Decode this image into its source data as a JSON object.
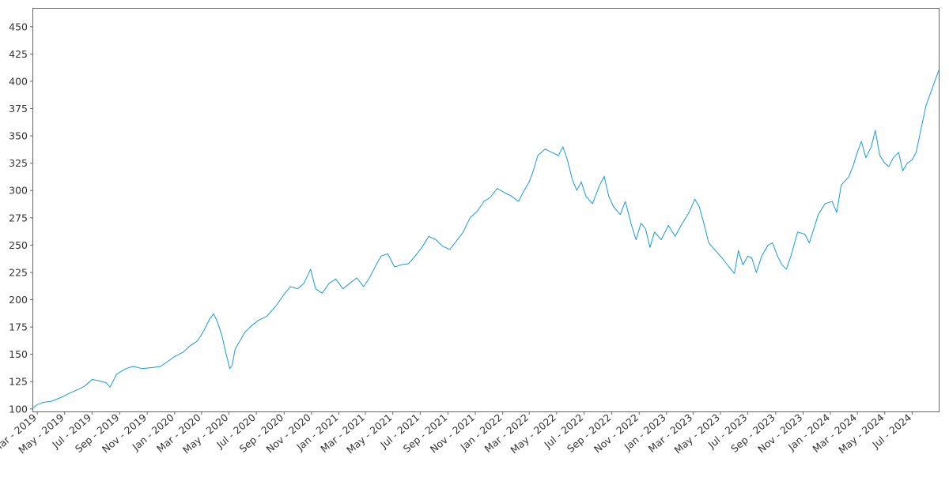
{
  "chart_data": {
    "type": "line",
    "title": "",
    "xlabel": "",
    "ylabel": "",
    "grid": false,
    "legend": "none",
    "line_color": "#1a9ad6",
    "x_start": "2019-02-20",
    "x_end": "2024-08-31",
    "ylim": [
      97.7,
      466.5
    ],
    "y_ticks": [
      100,
      125,
      150,
      175,
      200,
      225,
      250,
      275,
      300,
      325,
      350,
      375,
      400,
      425,
      450
    ],
    "x_ticks": [
      {
        "label": "Mar - 2019",
        "date": "2019-03-01"
      },
      {
        "label": "May - 2019",
        "date": "2019-05-01"
      },
      {
        "label": "Jul - 2019",
        "date": "2019-07-01"
      },
      {
        "label": "Sep - 2019",
        "date": "2019-09-01"
      },
      {
        "label": "Nov - 2019",
        "date": "2019-11-01"
      },
      {
        "label": "Jan - 2020",
        "date": "2020-01-01"
      },
      {
        "label": "Mar - 2020",
        "date": "2020-03-01"
      },
      {
        "label": "May - 2020",
        "date": "2020-05-01"
      },
      {
        "label": "Jul - 2020",
        "date": "2020-07-01"
      },
      {
        "label": "Sep - 2020",
        "date": "2020-09-01"
      },
      {
        "label": "Nov - 2020",
        "date": "2020-11-01"
      },
      {
        "label": "Jan - 2021",
        "date": "2021-01-01"
      },
      {
        "label": "Mar - 2021",
        "date": "2021-03-01"
      },
      {
        "label": "May - 2021",
        "date": "2021-05-01"
      },
      {
        "label": "Jul - 2021",
        "date": "2021-07-01"
      },
      {
        "label": "Sep - 2021",
        "date": "2021-09-01"
      },
      {
        "label": "Nov - 2021",
        "date": "2021-11-01"
      },
      {
        "label": "Jan - 2022",
        "date": "2022-01-01"
      },
      {
        "label": "Mar - 2022",
        "date": "2022-03-01"
      },
      {
        "label": "May - 2022",
        "date": "2022-05-01"
      },
      {
        "label": "Jul - 2022",
        "date": "2022-07-01"
      },
      {
        "label": "Sep - 2022",
        "date": "2022-09-01"
      },
      {
        "label": "Nov - 2022",
        "date": "2022-11-01"
      },
      {
        "label": "Jan - 2023",
        "date": "2023-01-01"
      },
      {
        "label": "Mar - 2023",
        "date": "2023-03-01"
      },
      {
        "label": "May - 2023",
        "date": "2023-05-01"
      },
      {
        "label": "Jul - 2023",
        "date": "2023-07-01"
      },
      {
        "label": "Sep - 2023",
        "date": "2023-09-01"
      },
      {
        "label": "Nov - 2023",
        "date": "2023-11-01"
      },
      {
        "label": "Jan - 2024",
        "date": "2024-01-01"
      },
      {
        "label": "Mar - 2024",
        "date": "2024-03-01"
      },
      {
        "label": "May - 2024",
        "date": "2024-05-01"
      },
      {
        "label": "Jul - 2024",
        "date": "2024-07-01"
      }
    ],
    "series": [
      {
        "points": [
          {
            "x": "2019-02-20",
            "y": 101
          },
          {
            "x": "2019-03-01",
            "y": 104
          },
          {
            "x": "2019-03-15",
            "y": 106
          },
          {
            "x": "2019-04-01",
            "y": 107
          },
          {
            "x": "2019-04-20",
            "y": 110
          },
          {
            "x": "2019-05-15",
            "y": 115
          },
          {
            "x": "2019-06-01",
            "y": 118
          },
          {
            "x": "2019-06-15",
            "y": 121
          },
          {
            "x": "2019-07-01",
            "y": 127
          },
          {
            "x": "2019-07-15",
            "y": 126
          },
          {
            "x": "2019-08-01",
            "y": 124
          },
          {
            "x": "2019-08-10",
            "y": 120
          },
          {
            "x": "2019-08-25",
            "y": 132
          },
          {
            "x": "2019-09-15",
            "y": 137
          },
          {
            "x": "2019-10-01",
            "y": 139
          },
          {
            "x": "2019-10-20",
            "y": 137
          },
          {
            "x": "2019-11-15",
            "y": 138
          },
          {
            "x": "2019-12-01",
            "y": 139
          },
          {
            "x": "2019-12-15",
            "y": 143
          },
          {
            "x": "2020-01-01",
            "y": 148
          },
          {
            "x": "2020-01-20",
            "y": 152
          },
          {
            "x": "2020-02-05",
            "y": 158
          },
          {
            "x": "2020-02-20",
            "y": 162
          },
          {
            "x": "2020-03-01",
            "y": 168
          },
          {
            "x": "2020-03-10",
            "y": 175
          },
          {
            "x": "2020-03-20",
            "y": 183
          },
          {
            "x": "2020-03-28",
            "y": 187
          },
          {
            "x": "2020-04-05",
            "y": 180
          },
          {
            "x": "2020-04-15",
            "y": 168
          },
          {
            "x": "2020-04-22",
            "y": 155
          },
          {
            "x": "2020-04-28",
            "y": 145
          },
          {
            "x": "2020-05-03",
            "y": 137
          },
          {
            "x": "2020-05-08",
            "y": 140
          },
          {
            "x": "2020-05-15",
            "y": 155
          },
          {
            "x": "2020-05-25",
            "y": 162
          },
          {
            "x": "2020-06-05",
            "y": 170
          },
          {
            "x": "2020-06-20",
            "y": 176
          },
          {
            "x": "2020-07-05",
            "y": 181
          },
          {
            "x": "2020-07-25",
            "y": 185
          },
          {
            "x": "2020-08-15",
            "y": 195
          },
          {
            "x": "2020-09-01",
            "y": 205
          },
          {
            "x": "2020-09-15",
            "y": 212
          },
          {
            "x": "2020-10-01",
            "y": 210
          },
          {
            "x": "2020-10-15",
            "y": 215
          },
          {
            "x": "2020-10-30",
            "y": 228
          },
          {
            "x": "2020-11-10",
            "y": 210
          },
          {
            "x": "2020-11-25",
            "y": 206
          },
          {
            "x": "2020-12-10",
            "y": 215
          },
          {
            "x": "2020-12-25",
            "y": 219
          },
          {
            "x": "2021-01-10",
            "y": 210
          },
          {
            "x": "2021-01-25",
            "y": 215
          },
          {
            "x": "2021-02-10",
            "y": 220
          },
          {
            "x": "2021-02-25",
            "y": 212
          },
          {
            "x": "2021-03-10",
            "y": 220
          },
          {
            "x": "2021-03-25",
            "y": 232
          },
          {
            "x": "2021-04-05",
            "y": 240
          },
          {
            "x": "2021-04-20",
            "y": 242
          },
          {
            "x": "2021-05-05",
            "y": 230
          },
          {
            "x": "2021-05-20",
            "y": 232
          },
          {
            "x": "2021-06-05",
            "y": 233
          },
          {
            "x": "2021-06-20",
            "y": 240
          },
          {
            "x": "2021-07-05",
            "y": 248
          },
          {
            "x": "2021-07-20",
            "y": 258
          },
          {
            "x": "2021-08-05",
            "y": 255
          },
          {
            "x": "2021-08-20",
            "y": 249
          },
          {
            "x": "2021-09-05",
            "y": 246
          },
          {
            "x": "2021-09-20",
            "y": 254
          },
          {
            "x": "2021-10-05",
            "y": 262
          },
          {
            "x": "2021-10-20",
            "y": 275
          },
          {
            "x": "2021-11-05",
            "y": 281
          },
          {
            "x": "2021-11-20",
            "y": 290
          },
          {
            "x": "2021-12-05",
            "y": 294
          },
          {
            "x": "2021-12-20",
            "y": 302
          },
          {
            "x": "2022-01-05",
            "y": 298
          },
          {
            "x": "2022-01-20",
            "y": 295
          },
          {
            "x": "2022-02-05",
            "y": 290
          },
          {
            "x": "2022-02-15",
            "y": 298
          },
          {
            "x": "2022-03-01",
            "y": 308
          },
          {
            "x": "2022-03-10",
            "y": 318
          },
          {
            "x": "2022-03-20",
            "y": 332
          },
          {
            "x": "2022-04-05",
            "y": 338
          },
          {
            "x": "2022-04-20",
            "y": 335
          },
          {
            "x": "2022-05-05",
            "y": 332
          },
          {
            "x": "2022-05-15",
            "y": 340
          },
          {
            "x": "2022-05-25",
            "y": 328
          },
          {
            "x": "2022-06-05",
            "y": 310
          },
          {
            "x": "2022-06-15",
            "y": 300
          },
          {
            "x": "2022-06-25",
            "y": 308
          },
          {
            "x": "2022-07-05",
            "y": 295
          },
          {
            "x": "2022-07-20",
            "y": 288
          },
          {
            "x": "2022-08-05",
            "y": 305
          },
          {
            "x": "2022-08-15",
            "y": 313
          },
          {
            "x": "2022-08-25",
            "y": 295
          },
          {
            "x": "2022-09-05",
            "y": 285
          },
          {
            "x": "2022-09-20",
            "y": 278
          },
          {
            "x": "2022-10-01",
            "y": 290
          },
          {
            "x": "2022-10-15",
            "y": 268
          },
          {
            "x": "2022-10-25",
            "y": 255
          },
          {
            "x": "2022-11-05",
            "y": 270
          },
          {
            "x": "2022-11-15",
            "y": 265
          },
          {
            "x": "2022-11-25",
            "y": 248
          },
          {
            "x": "2022-12-05",
            "y": 262
          },
          {
            "x": "2022-12-20",
            "y": 255
          },
          {
            "x": "2023-01-05",
            "y": 268
          },
          {
            "x": "2023-01-20",
            "y": 258
          },
          {
            "x": "2023-02-05",
            "y": 270
          },
          {
            "x": "2023-02-20",
            "y": 280
          },
          {
            "x": "2023-03-05",
            "y": 292
          },
          {
            "x": "2023-03-15",
            "y": 285
          },
          {
            "x": "2023-03-25",
            "y": 270
          },
          {
            "x": "2023-04-05",
            "y": 252
          },
          {
            "x": "2023-04-20",
            "y": 245
          },
          {
            "x": "2023-05-05",
            "y": 238
          },
          {
            "x": "2023-05-20",
            "y": 230
          },
          {
            "x": "2023-06-01",
            "y": 224
          },
          {
            "x": "2023-06-10",
            "y": 245
          },
          {
            "x": "2023-06-20",
            "y": 232
          },
          {
            "x": "2023-07-01",
            "y": 240
          },
          {
            "x": "2023-07-10",
            "y": 238
          },
          {
            "x": "2023-07-20",
            "y": 225
          },
          {
            "x": "2023-08-01",
            "y": 240
          },
          {
            "x": "2023-08-15",
            "y": 250
          },
          {
            "x": "2023-08-25",
            "y": 252
          },
          {
            "x": "2023-09-05",
            "y": 240
          },
          {
            "x": "2023-09-15",
            "y": 232
          },
          {
            "x": "2023-09-25",
            "y": 228
          },
          {
            "x": "2023-10-05",
            "y": 240
          },
          {
            "x": "2023-10-20",
            "y": 262
          },
          {
            "x": "2023-11-05",
            "y": 260
          },
          {
            "x": "2023-11-15",
            "y": 252
          },
          {
            "x": "2023-11-25",
            "y": 265
          },
          {
            "x": "2023-12-05",
            "y": 278
          },
          {
            "x": "2023-12-20",
            "y": 288
          },
          {
            "x": "2024-01-05",
            "y": 290
          },
          {
            "x": "2024-01-15",
            "y": 280
          },
          {
            "x": "2024-01-25",
            "y": 305
          },
          {
            "x": "2024-02-10",
            "y": 312
          },
          {
            "x": "2024-02-20",
            "y": 322
          },
          {
            "x": "2024-03-01",
            "y": 335
          },
          {
            "x": "2024-03-10",
            "y": 345
          },
          {
            "x": "2024-03-20",
            "y": 330
          },
          {
            "x": "2024-04-01",
            "y": 340
          },
          {
            "x": "2024-04-10",
            "y": 355
          },
          {
            "x": "2024-04-20",
            "y": 332
          },
          {
            "x": "2024-05-01",
            "y": 325
          },
          {
            "x": "2024-05-10",
            "y": 322
          },
          {
            "x": "2024-05-20",
            "y": 330
          },
          {
            "x": "2024-06-01",
            "y": 335
          },
          {
            "x": "2024-06-10",
            "y": 318
          },
          {
            "x": "2024-06-20",
            "y": 325
          },
          {
            "x": "2024-07-01",
            "y": 328
          },
          {
            "x": "2024-07-10",
            "y": 335
          },
          {
            "x": "2024-07-20",
            "y": 355
          },
          {
            "x": "2024-08-01",
            "y": 378
          },
          {
            "x": "2024-08-31",
            "y": 412
          }
        ]
      }
    ]
  }
}
